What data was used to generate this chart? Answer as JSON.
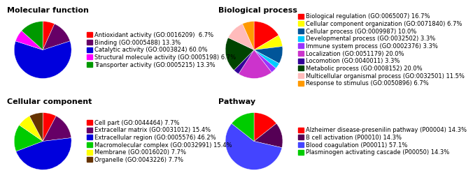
{
  "mf": {
    "title": "Molecular function",
    "labels": [
      "Antioxidant activity (GO:0016209)  6.7%",
      "Binding (GO:0005488) 13.3%",
      "Catalytic activity (GO:0003824) 60.0%",
      "Structural molecule activity (GO:0005198) 6.7%",
      "Transporter activity (GO:0005215) 13.3%"
    ],
    "values": [
      6.7,
      13.3,
      60.0,
      6.7,
      13.3
    ],
    "colors": [
      "#ff0000",
      "#660066",
      "#0000dd",
      "#ff00ff",
      "#009900"
    ],
    "startangle": 90,
    "counterclock": false
  },
  "bp": {
    "title": "Biological process",
    "labels": [
      "Biological regulation (GO:0065007) 16.7%",
      "Cellular component organization (GO:0071840) 6.7%",
      "Cellular process (GO:0009987) 10.0%",
      "Developmental process (GO:0032502) 3.3%",
      "Immune system process (GO:0002376) 3.3%",
      "Localization (GO:0051179) 20.0%",
      "Locomotion (GO:0040011) 3.3%",
      "Metabolic process (GO:0008152) 20.0%",
      "Multicellular organismal process (GO:0032501) 11.5%",
      "Response to stimulus (GO:0050896) 6.7%"
    ],
    "values": [
      16.7,
      6.7,
      10.0,
      3.3,
      3.3,
      20.0,
      3.3,
      20.0,
      11.5,
      6.7
    ],
    "colors": [
      "#ff0000",
      "#ffff00",
      "#005599",
      "#00ccff",
      "#9933ff",
      "#cc33cc",
      "#330099",
      "#004400",
      "#ffbbbb",
      "#ff9900"
    ],
    "startangle": 90,
    "counterclock": false
  },
  "cc": {
    "title": "Cellular component",
    "labels": [
      "Cell part (GO:0044464) 7.7%",
      "Extracellar matrix (GO:0031012) 15.4%",
      "Extracellular region (GO:0005576) 46.2%",
      "Macromolecular complex (GO:0032991) 15.4%",
      "Membrane (GO:0016020) 7.7%",
      "Organelle (GO:0043226) 7.7%"
    ],
    "values": [
      7.7,
      15.4,
      46.2,
      15.4,
      7.7,
      7.7
    ],
    "colors": [
      "#ff0000",
      "#660066",
      "#0000dd",
      "#00cc00",
      "#ffff00",
      "#663300"
    ],
    "startangle": 90,
    "counterclock": false
  },
  "pw": {
    "title": "Pathway",
    "labels": [
      "Alzheimer disease-presenilin pathway (P00004) 14.3%",
      "B cell activation (P00010) 14.3%",
      "Blood coagulation (P00011) 57.1%",
      "Plasminogen activating cascade (P00050) 14.3%"
    ],
    "values": [
      14.3,
      14.3,
      57.1,
      14.3
    ],
    "colors": [
      "#ff0000",
      "#550055",
      "#4444ff",
      "#00cc00"
    ],
    "startangle": 90,
    "counterclock": false
  },
  "background": "#ffffff",
  "title_fontsize": 8,
  "legend_fontsize": 6.0
}
